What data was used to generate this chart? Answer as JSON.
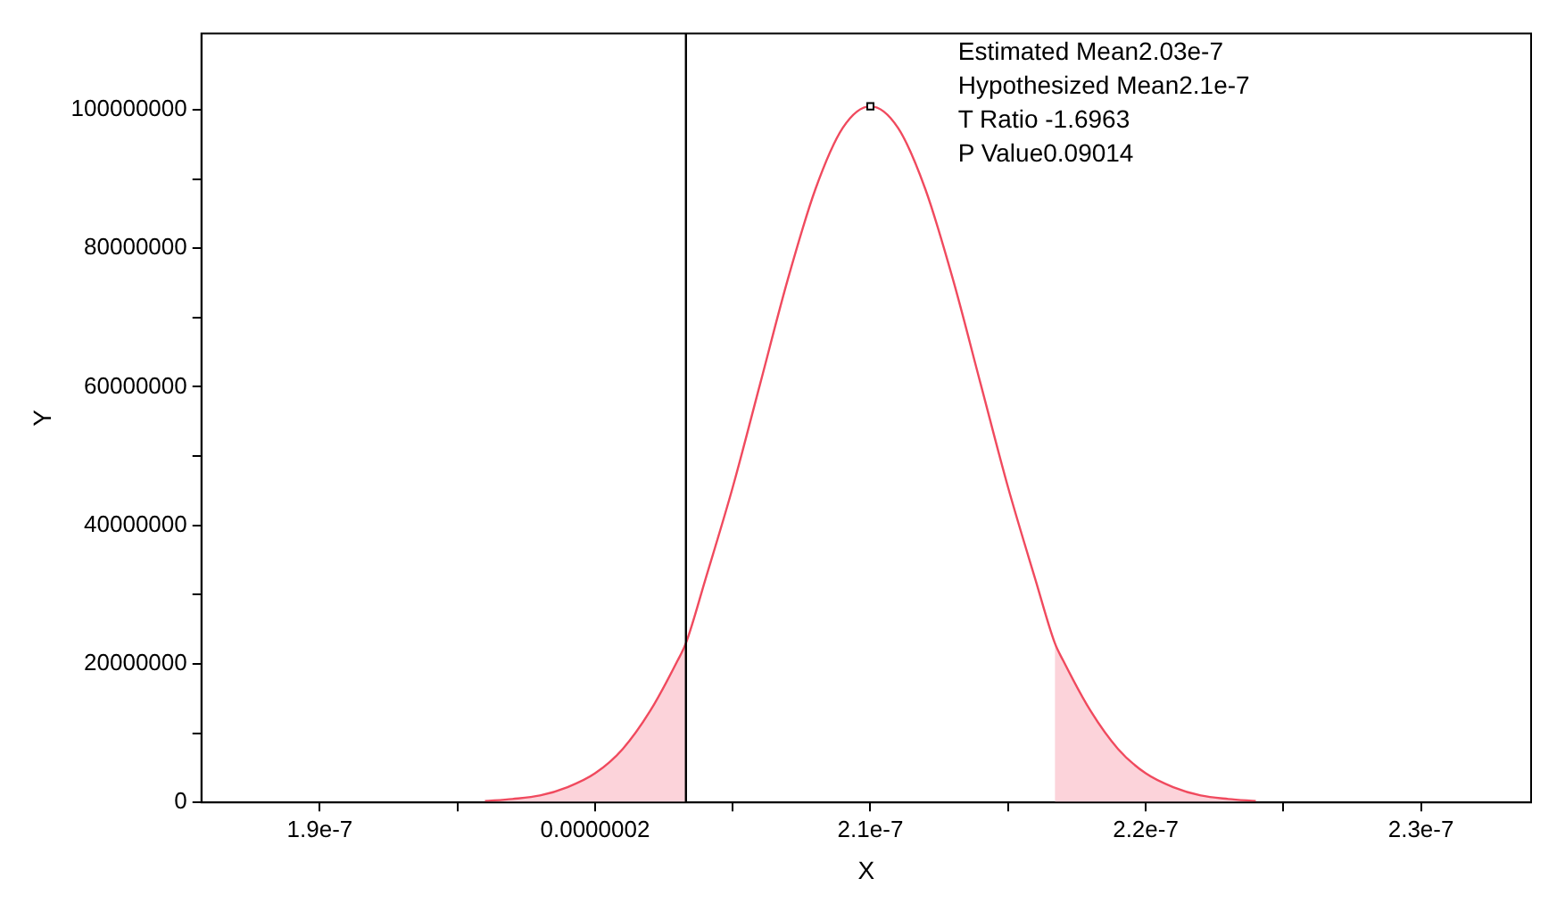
{
  "chart_data": {
    "type": "line",
    "xlabel": "X",
    "ylabel": "Y",
    "xlim": [
      1.857e-07,
      2.34e-07
    ],
    "ylim": [
      0,
      111000000
    ],
    "xticks": [
      {
        "value": 1.9e-07,
        "label": "1.9e-7"
      },
      {
        "value": 1.95e-07,
        "label": null
      },
      {
        "value": 2e-07,
        "label": "0.0000002"
      },
      {
        "value": 2.05e-07,
        "label": null
      },
      {
        "value": 2.1e-07,
        "label": "2.1e-7"
      },
      {
        "value": 2.15e-07,
        "label": null
      },
      {
        "value": 2.2e-07,
        "label": "2.2e-7"
      },
      {
        "value": 2.25e-07,
        "label": null
      },
      {
        "value": 2.3e-07,
        "label": "2.3e-7"
      }
    ],
    "yticks": [
      0,
      {
        "value": 10000000,
        "label": null
      },
      20000000,
      {
        "value": 30000000,
        "label": null
      },
      40000000,
      {
        "value": 50000000,
        "label": null
      },
      60000000,
      {
        "value": 70000000,
        "label": null
      },
      80000000,
      {
        "value": 90000000,
        "label": null
      },
      100000000
    ],
    "grid": false,
    "legend": false,
    "series": [
      {
        "type": "area",
        "color": "#fcd3da",
        "x": [
          1.96e-07,
          1.97e-07,
          1.98e-07,
          1.99e-07,
          2e-07,
          2.01e-07,
          2.02e-07,
          2.03e-07,
          2.033e-07
        ],
        "values": [
          200000,
          500000,
          1000000,
          2200000,
          4200000,
          7700000,
          13200000,
          20500000,
          23000000
        ]
      },
      {
        "type": "area",
        "color": "#fcd3da",
        "x": [
          2.167e-07,
          2.17e-07,
          2.18e-07,
          2.19e-07,
          2.2e-07,
          2.21e-07,
          2.22e-07,
          2.23e-07,
          2.24e-07
        ],
        "values": [
          23000000,
          20500000,
          13200000,
          7700000,
          4200000,
          2200000,
          1000000,
          500000,
          200000
        ]
      },
      {
        "type": "line",
        "color": "#f04a5e",
        "marker": "none",
        "line_style": "solid",
        "x": [
          1.96e-07,
          1.97e-07,
          1.98e-07,
          1.99e-07,
          2e-07,
          2.01e-07,
          2.02e-07,
          2.03e-07,
          2.033e-07,
          2.04e-07,
          2.05e-07,
          2.06e-07,
          2.07e-07,
          2.08e-07,
          2.09e-07,
          2.1e-07,
          2.11e-07,
          2.12e-07,
          2.13e-07,
          2.14e-07,
          2.15e-07,
          2.16e-07,
          2.167e-07,
          2.17e-07,
          2.18e-07,
          2.19e-07,
          2.2e-07,
          2.21e-07,
          2.22e-07,
          2.23e-07,
          2.24e-07
        ],
        "values": [
          200000,
          500000,
          1000000,
          2200000,
          4200000,
          7700000,
          13200000,
          20500000,
          23000000,
          32100000,
          45500000,
          60500000,
          75500000,
          88500000,
          97400000,
          100500000,
          97400000,
          88500000,
          75500000,
          60500000,
          45500000,
          32100000,
          23000000,
          20500000,
          13200000,
          7700000,
          4200000,
          2200000,
          1000000,
          500000,
          200000
        ]
      },
      {
        "type": "scatter",
        "color": "#000000",
        "marker": "square",
        "x": [
          2.1e-07
        ],
        "values": [
          100500000
        ]
      }
    ],
    "ref_lines": [
      {
        "axis": "x",
        "value": 2.033e-07,
        "color": "#000000"
      }
    ],
    "annotations": [
      "Estimated Mean2.03e-7",
      "Hypothesized Mean2.1e-7",
      "T Ratio -1.6963",
      "P Value0.09014"
    ]
  }
}
